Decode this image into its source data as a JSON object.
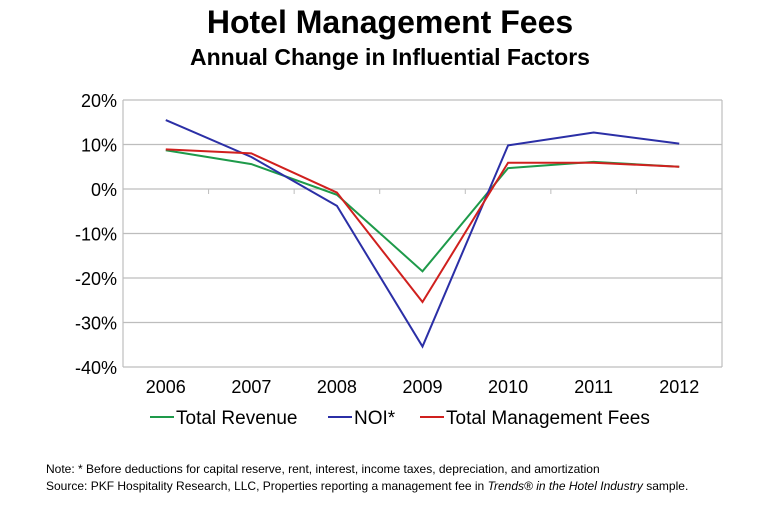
{
  "chart_data": {
    "type": "line",
    "title": "Hotel Management Fees",
    "subtitle": "Annual Change in Influential Factors",
    "categories": [
      "2006",
      "2007",
      "2008",
      "2009",
      "2010",
      "2011",
      "2012"
    ],
    "ylim": [
      -40,
      20
    ],
    "yticks": [
      20,
      10,
      0,
      -10,
      -20,
      -30,
      -40
    ],
    "ytick_labels": [
      "20%",
      "10%",
      "0%",
      "-10%",
      "-20%",
      "-30%",
      "-40%"
    ],
    "grid": true,
    "legend_position": "bottom",
    "series": [
      {
        "name": "Total Revenue",
        "color": "#1e9a4a",
        "values": [
          8.7,
          5.6,
          -1.3,
          -18.5,
          4.7,
          6.1,
          5.0
        ]
      },
      {
        "name": "NOI*",
        "color": "#2b2fa6",
        "values": [
          15.5,
          7.2,
          -3.8,
          -35.4,
          9.8,
          12.7,
          10.2
        ]
      },
      {
        "name": "Total Management Fees",
        "color": "#d0201e",
        "values": [
          8.9,
          8.0,
          -0.8,
          -25.4,
          5.9,
          5.9,
          5.0
        ]
      }
    ]
  },
  "notes": {
    "note": "Note: * Before deductions for capital reserve, rent, interest, income taxes, depreciation, and amortization",
    "source_prefix": "Source: PKF Hospitality Research, LLC, Properties reporting a management fee in ",
    "source_italic": "Trends® in the Hotel Industry",
    "source_suffix": " sample."
  }
}
